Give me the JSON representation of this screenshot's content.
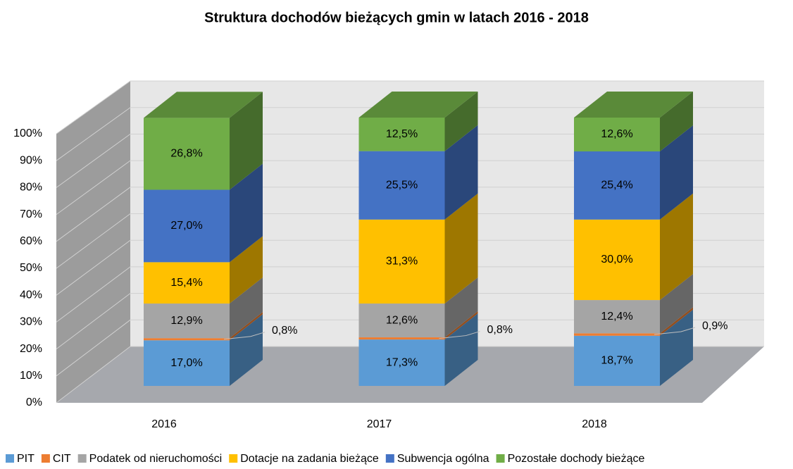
{
  "chart_data": {
    "type": "bar3d_stacked",
    "title": "Struktura dochodów bieżących gmin w latach 2016 - 2018",
    "categories": [
      "2016",
      "2017",
      "2018"
    ],
    "series": [
      {
        "name": "PIT",
        "color": "#5b9bd5",
        "values": [
          17.0,
          17.3,
          18.7
        ],
        "value_labels": [
          "17,0%",
          "17,3%",
          "18,7%"
        ]
      },
      {
        "name": "CIT",
        "color": "#ed7d31",
        "values": [
          0.8,
          0.8,
          0.9
        ],
        "value_labels": [
          "0,8%",
          "0,8%",
          "0,9%"
        ]
      },
      {
        "name": "Podatek od nieruchomości",
        "color": "#a5a5a5",
        "values": [
          12.9,
          12.6,
          12.4
        ],
        "value_labels": [
          "12,9%",
          "12,6%",
          "12,4%"
        ]
      },
      {
        "name": "Dotacje na zadania bieżące",
        "color": "#ffc000",
        "values": [
          15.4,
          31.3,
          30.0
        ],
        "value_labels": [
          "15,4%",
          "31,3%",
          "30,0%"
        ]
      },
      {
        "name": "Subwencja ogólna",
        "color": "#4472c4",
        "values": [
          27.0,
          25.5,
          25.4
        ],
        "value_labels": [
          "27,0%",
          "25,5%",
          "25,4%"
        ]
      },
      {
        "name": "Pozostałe dochody bieżące",
        "color": "#70ad47",
        "values": [
          26.8,
          12.5,
          12.6
        ],
        "value_labels": [
          "26,8%",
          "12,5%",
          "12,6%"
        ]
      }
    ],
    "ylim": [
      0,
      100
    ],
    "yticks": [
      {
        "value": 0,
        "label": "0%"
      },
      {
        "value": 10,
        "label": "10%"
      },
      {
        "value": 20,
        "label": "20%"
      },
      {
        "value": 30,
        "label": "30%"
      },
      {
        "value": 40,
        "label": "40%"
      },
      {
        "value": 50,
        "label": "50%"
      },
      {
        "value": 60,
        "label": "60%"
      },
      {
        "value": 70,
        "label": "70%"
      },
      {
        "value": 80,
        "label": "80%"
      },
      {
        "value": 90,
        "label": "90%"
      },
      {
        "value": 100,
        "label": "100%"
      }
    ],
    "grid": true,
    "legend": "bottom"
  }
}
